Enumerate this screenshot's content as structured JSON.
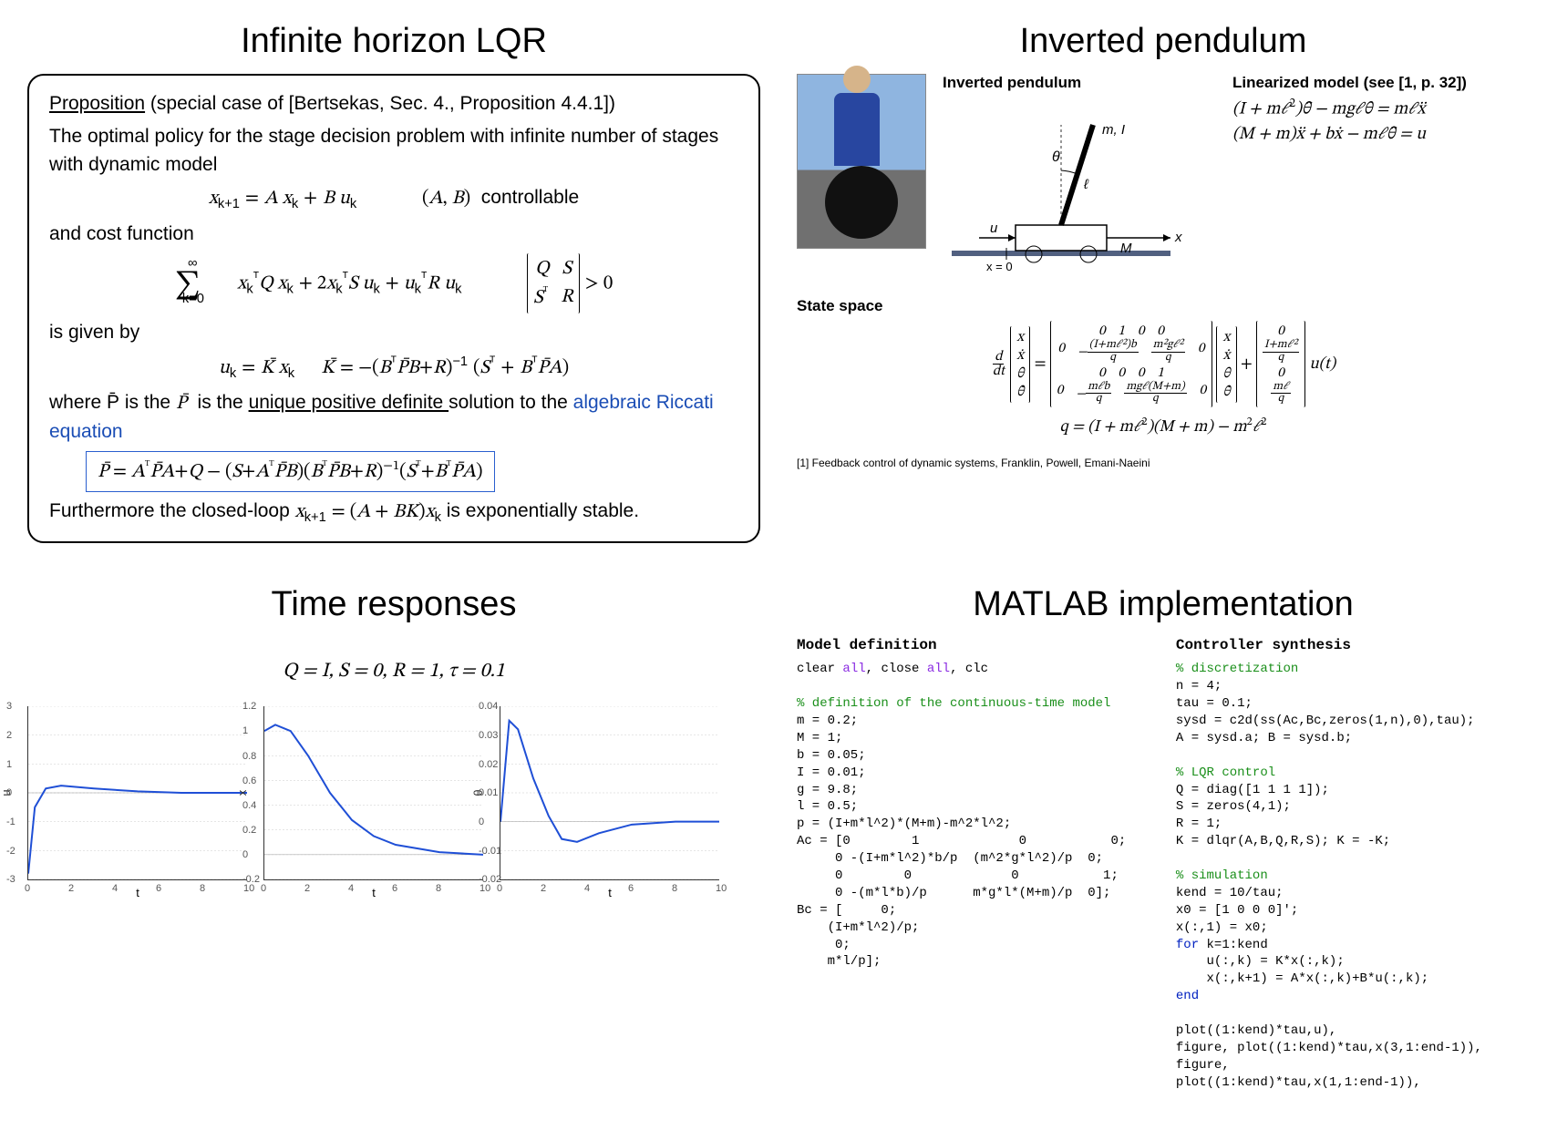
{
  "panels": {
    "lqr": {
      "title": "Infinite horizon LQR",
      "proposition_prefix": "Proposition",
      "proposition_ref": " (special case of [Bertsekas, Sec. 4., Proposition 4.4.1])",
      "intro1": "The optimal policy for the stage decision problem with infinite number of stages with dynamic model",
      "dynamics": "x_{k+1} = A x_k + B u_k",
      "controllable": "(A, B)  controllable",
      "and_cost": "and cost function",
      "cost_sum": "∑_{k=0}^{∞} x_kᵀQ x_k + 2x_kᵀS u_k + u_kᵀR u_k",
      "cost_matrix": "[ Q  S ; Sᵀ  R ] > 0",
      "is_given_by": "is given by",
      "u_eq": "u_k = K̄ x_k    K̄ = −(BᵀP̄B + R)⁻¹ (Sᵀ + BᵀP̄A)",
      "where_p": "where  P̄  is the ",
      "unique_pd": "unique positive definite ",
      "solution_to": "solution to the ",
      "riccati_link": "algebraic Riccati equation",
      "riccati_eq": "P̄ = AᵀP̄A + Q − (S + AᵀP̄B)(BᵀP̄B + R)⁻¹(Sᵀ + BᵀP̄A)",
      "furthermore_a": "Furthermore the closed-loop ",
      "furthermore_b": "x_{k+1} = (A + BK)x_k",
      "furthermore_c": " is exponentially stable."
    },
    "pendulum": {
      "title": "Inverted pendulum",
      "diagram_title": "Inverted pendulum",
      "diagram": {
        "theta": "θ",
        "mI": "m, I",
        "ell": "ℓ",
        "u": "u",
        "x0": "x = 0",
        "M": "M",
        "xaxis": "x"
      },
      "lin_title": "Linearized model (see [1, p. 32])",
      "lin_eq1": "(I + mℓ²) θ̈ − mgℓθ = mℓ ẍ",
      "lin_eq2": "(M + m) ẍ + b ẋ − mℓ θ̈ = u",
      "ss_title": "State space",
      "ss_lhs_vec": "[x; ẋ; θ; θ̇]",
      "ss_A": "[0 1 0 0; 0 −(I+mℓ²)b/q  m²gℓ²/q 0; 0 0 0 1; 0 −mℓb/q  mgℓ(M+m)/q 0]",
      "ss_B": "[0; (I+mℓ²)/q; 0; mℓ/q]",
      "ss_u": "u(t)",
      "q_def": "q = (I + mℓ²)(M + m) − m²ℓ²",
      "citation": "[1] Feedback control of dynamic systems, Franklin, Powell, Emani-Naeini"
    },
    "time": {
      "title": "Time responses",
      "params": "Q = I, S = 0, R = 1, τ = 0.1",
      "plots": [
        {
          "ylabel": "u",
          "xlabel": "t",
          "ylim": [
            -3,
            3
          ],
          "yticks": [
            -3,
            -2,
            -1,
            0,
            1,
            2,
            3
          ],
          "xlim": [
            0,
            10
          ],
          "xticks": [
            0,
            2,
            4,
            6,
            8,
            10
          ],
          "color": "#1f4fd6",
          "points": [
            [
              0,
              -2.8
            ],
            [
              0.3,
              -0.5
            ],
            [
              0.8,
              0.15
            ],
            [
              1.5,
              0.25
            ],
            [
              3,
              0.15
            ],
            [
              5,
              0.05
            ],
            [
              7,
              0.0
            ],
            [
              10,
              0.0
            ]
          ]
        },
        {
          "ylabel": "x",
          "xlabel": "t",
          "ylim": [
            -0.2,
            1.2
          ],
          "yticks": [
            -0.2,
            0,
            0.2,
            0.4,
            0.6,
            0.8,
            1.0,
            1.2
          ],
          "xlim": [
            0,
            10
          ],
          "xticks": [
            0,
            2,
            4,
            6,
            8,
            10
          ],
          "color": "#1f4fd6",
          "points": [
            [
              0,
              1.0
            ],
            [
              0.5,
              1.05
            ],
            [
              1.2,
              1.0
            ],
            [
              2,
              0.8
            ],
            [
              3,
              0.5
            ],
            [
              4,
              0.28
            ],
            [
              5,
              0.15
            ],
            [
              6,
              0.08
            ],
            [
              8,
              0.02
            ],
            [
              10,
              0.0
            ]
          ]
        },
        {
          "ylabel": "θ",
          "xlabel": "t",
          "ylim": [
            -0.02,
            0.04
          ],
          "yticks": [
            -0.02,
            -0.01,
            0,
            0.01,
            0.02,
            0.03,
            0.04
          ],
          "xlim": [
            0,
            10
          ],
          "xticks": [
            0,
            2,
            4,
            6,
            8,
            10
          ],
          "color": "#1f4fd6",
          "points": [
            [
              0,
              0
            ],
            [
              0.4,
              0.035
            ],
            [
              0.8,
              0.032
            ],
            [
              1.5,
              0.015
            ],
            [
              2.2,
              0.002
            ],
            [
              2.8,
              -0.006
            ],
            [
              3.5,
              -0.007
            ],
            [
              4.5,
              -0.004
            ],
            [
              6,
              -0.001
            ],
            [
              8,
              0
            ],
            [
              10,
              0
            ]
          ]
        }
      ]
    },
    "matlab": {
      "title": "MATLAB implementation",
      "left_title": "Model definition",
      "right_title": "Controller synthesis",
      "left_code": [
        {
          "t": "plain",
          "s": "clear "
        },
        {
          "t": "str",
          "s": "all"
        },
        {
          "t": "plain",
          "s": ", close "
        },
        {
          "t": "str",
          "s": "all"
        },
        {
          "t": "plain",
          "s": ", clc\n\n"
        },
        {
          "t": "comment",
          "s": "% definition of the continuous-time model\n"
        },
        {
          "t": "plain",
          "s": "m = 0.2;\nM = 1;\nb = 0.05;\nI = 0.01;\ng = 9.8;\nl = 0.5;\np = (I+m*l^2)*(M+m)-m^2*l^2;\nAc = [0        1             0           0;\n     0 -(I+m*l^2)*b/p  (m^2*g*l^2)/p  0;\n     0        0             0           1;\n     0 -(m*l*b)/p      m*g*l*(M+m)/p  0];\nBc = [     0;\n    (I+m*l^2)/p;\n     0;\n    m*l/p];\n"
        }
      ],
      "right_code": [
        {
          "t": "comment",
          "s": "% discretization\n"
        },
        {
          "t": "plain",
          "s": "n = 4;\ntau = 0.1;\nsysd = c2d(ss(Ac,Bc,zeros(1,n),0),tau);\nA = sysd.a; B = sysd.b;\n\n"
        },
        {
          "t": "comment",
          "s": "% LQR control\n"
        },
        {
          "t": "plain",
          "s": "Q = diag([1 1 1 1]);\nS = zeros(4,1);\nR = 1;\nK = dlqr(A,B,Q,R,S); K = -K;\n\n"
        },
        {
          "t": "comment",
          "s": "% simulation\n"
        },
        {
          "t": "plain",
          "s": "kend = 10/tau;\nx0 = [1 0 0 0]';\nx(:,1) = x0;\n"
        },
        {
          "t": "keyword",
          "s": "for"
        },
        {
          "t": "plain",
          "s": " k=1:kend\n    u(:,k) = K*x(:,k);\n    x(:,k+1) = A*x(:,k)+B*u(:,k);\n"
        },
        {
          "t": "keyword",
          "s": "end"
        },
        {
          "t": "plain",
          "s": "\n\nplot((1:kend)*tau,u),\nfigure, plot((1:kend)*tau,x(3,1:end-1)),\nfigure,\nplot((1:kend)*tau,x(1,1:end-1)),\n"
        }
      ]
    }
  }
}
